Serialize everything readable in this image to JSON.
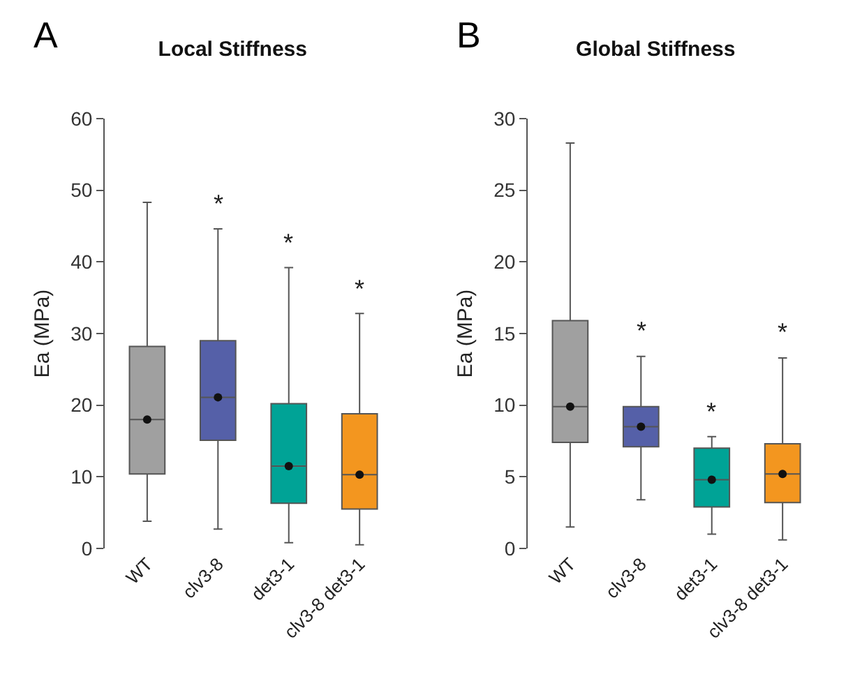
{
  "chart_data": [
    {
      "type": "box",
      "title": "Local Stiffness",
      "ylabel": "Ea (MPa)",
      "categories": [
        "WT",
        "clv3-8",
        "det3-1",
        "clv3-8 det3-1"
      ],
      "colors": [
        "#a0a0a0",
        "#5560a8",
        "#00a396",
        "#f3961f"
      ],
      "boxes": [
        {
          "low": 3.8,
          "q1": 10.4,
          "median": 18.0,
          "mean": 18.0,
          "q3": 28.2,
          "high": 48.3
        },
        {
          "low": 2.7,
          "q1": 15.1,
          "median": 21.1,
          "mean": 21.1,
          "q3": 29.0,
          "high": 44.6
        },
        {
          "low": 0.8,
          "q1": 6.3,
          "median": 11.5,
          "mean": 11.5,
          "q3": 20.2,
          "high": 39.2
        },
        {
          "low": 0.5,
          "q1": 5.5,
          "median": 10.3,
          "mean": 10.3,
          "q3": 18.8,
          "high": 32.8
        }
      ],
      "ylim": [
        0,
        60
      ],
      "yticks": [
        0,
        10,
        20,
        30,
        40,
        50,
        60
      ],
      "grid": false,
      "annotations": [
        "A",
        "*",
        "*",
        "*"
      ]
    },
    {
      "type": "box",
      "title": "Global Stiffness",
      "ylabel": "Ea (MPa)",
      "categories": [
        "WT",
        "clv3-8",
        "det3-1",
        "clv3-8 det3-1"
      ],
      "colors": [
        "#a0a0a0",
        "#5560a8",
        "#00a396",
        "#f3961f"
      ],
      "boxes": [
        {
          "low": 1.5,
          "q1": 7.4,
          "median": 9.9,
          "mean": 9.9,
          "q3": 15.9,
          "high": 28.3
        },
        {
          "low": 3.4,
          "q1": 7.1,
          "median": 8.5,
          "mean": 8.5,
          "q3": 9.9,
          "high": 13.4
        },
        {
          "low": 1.0,
          "q1": 2.9,
          "median": 4.8,
          "mean": 4.8,
          "q3": 7.0,
          "high": 7.8
        },
        {
          "low": 0.6,
          "q1": 3.2,
          "median": 5.2,
          "mean": 5.2,
          "q3": 7.3,
          "high": 13.3
        }
      ],
      "ylim": [
        0,
        30
      ],
      "yticks": [
        0,
        5,
        10,
        15,
        20,
        25,
        30
      ],
      "grid": false,
      "annotations": [
        "B",
        "*",
        "*",
        "*"
      ]
    }
  ]
}
